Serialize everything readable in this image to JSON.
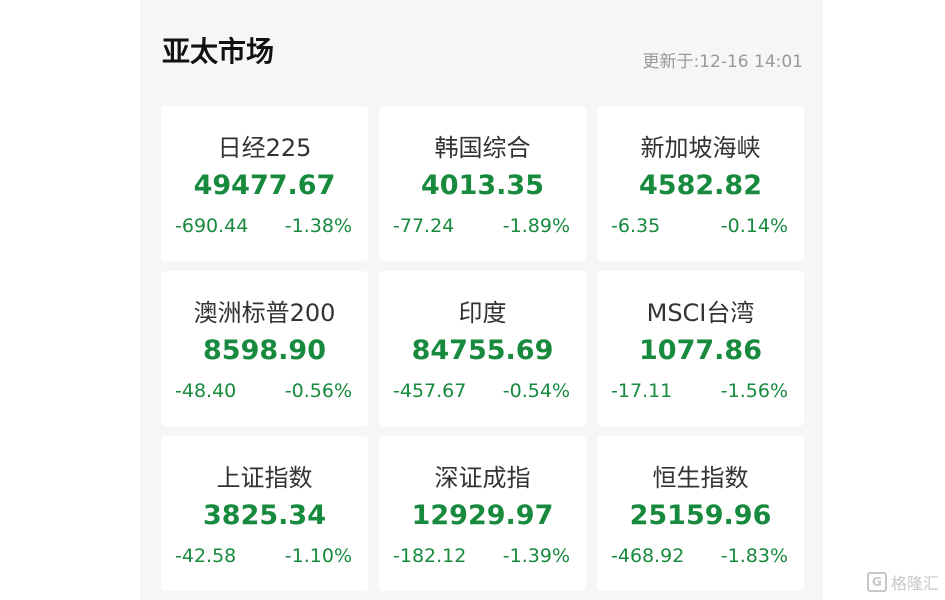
{
  "header": {
    "title": "亚太市场",
    "updated": "更新于:12-16 14:01"
  },
  "colors": {
    "down": "#178a3e"
  },
  "indices": [
    {
      "name": "日经225",
      "price": "49477.67",
      "change": "-690.44",
      "percent": "-1.38%"
    },
    {
      "name": "韩国综合",
      "price": "4013.35",
      "change": "-77.24",
      "percent": "-1.89%"
    },
    {
      "name": "新加坡海峡",
      "price": "4582.82",
      "change": "-6.35",
      "percent": "-0.14%"
    },
    {
      "name": "澳洲标普200",
      "price": "8598.90",
      "change": "-48.40",
      "percent": "-0.56%"
    },
    {
      "name": "印度",
      "price": "84755.69",
      "change": "-457.67",
      "percent": "-0.54%"
    },
    {
      "name": "MSCI台湾",
      "price": "1077.86",
      "change": "-17.11",
      "percent": "-1.56%"
    },
    {
      "name": "上证指数",
      "price": "3825.34",
      "change": "-42.58",
      "percent": "-1.10%"
    },
    {
      "name": "深证成指",
      "price": "12929.97",
      "change": "-182.12",
      "percent": "-1.39%"
    },
    {
      "name": "恒生指数",
      "price": "25159.96",
      "change": "-468.92",
      "percent": "-1.83%"
    }
  ],
  "watermark": {
    "text": "格隆汇",
    "icon": "G"
  }
}
